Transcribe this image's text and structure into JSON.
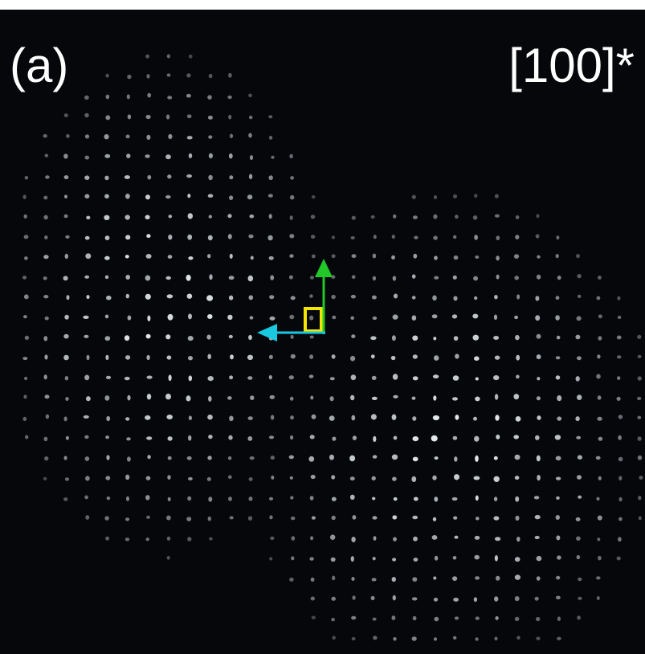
{
  "panel_label": "(a)",
  "zone_axis": "[100]*"
}
